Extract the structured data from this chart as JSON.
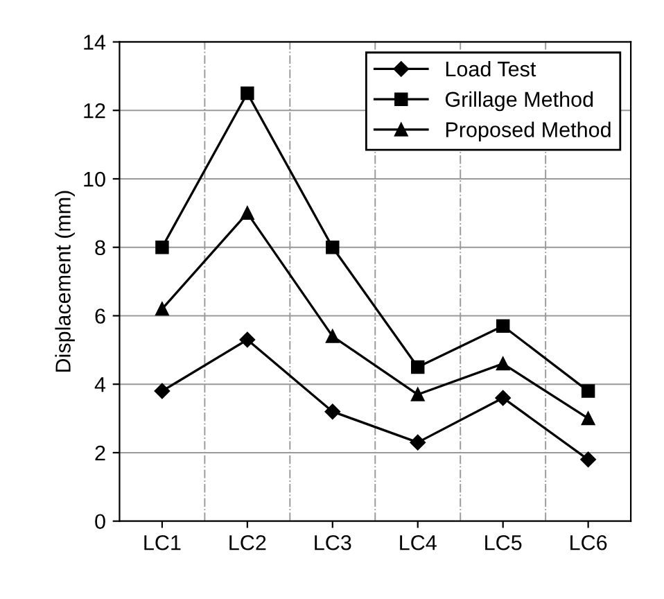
{
  "chart_data": {
    "type": "line",
    "ylabel": "Displacement (mm)",
    "categories": [
      "LC1",
      "LC2",
      "LC3",
      "LC4",
      "LC5",
      "LC6"
    ],
    "series": [
      {
        "name": "Load Test",
        "color": "#000000",
        "marker": "diamond",
        "values": [
          3.8,
          5.3,
          3.2,
          2.3,
          3.6,
          1.8
        ]
      },
      {
        "name": "Grillage Method",
        "color": "#000000",
        "marker": "square",
        "values": [
          8.0,
          12.5,
          8.0,
          4.5,
          5.7,
          3.8
        ]
      },
      {
        "name": "Proposed Method",
        "color": "#000000",
        "marker": "triangle",
        "values": [
          6.2,
          9.0,
          5.4,
          3.7,
          4.6,
          3.0
        ]
      }
    ],
    "ylim": [
      0,
      14
    ],
    "yticks": [
      0,
      2,
      4,
      6,
      8,
      10,
      12,
      14
    ],
    "grid": "y",
    "legend": "top right",
    "line_style": "solid"
  }
}
